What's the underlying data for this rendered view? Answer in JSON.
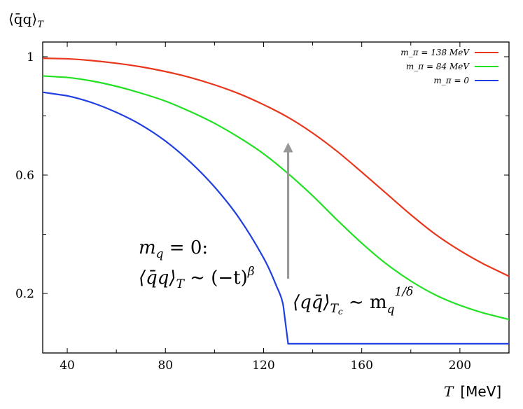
{
  "chart_data": {
    "type": "line",
    "ylabel": "⟨q̄q⟩",
    "ylabel_sub": "T",
    "xlabel": "T",
    "xlabel_unit": "[MeV]",
    "xlim": [
      30,
      220
    ],
    "ylim": [
      0,
      1.06
    ],
    "xticks": [
      40,
      80,
      120,
      160,
      200
    ],
    "yticks": [
      1,
      0.6,
      0.2
    ],
    "ytick_labels": [
      "1",
      "0.6",
      "0.2"
    ],
    "grid": false,
    "legend_position": "top-right",
    "series": [
      {
        "name": "m_π = 138 MeV",
        "color": "#e8371c",
        "x": [
          30,
          40,
          50,
          60,
          70,
          80,
          90,
          100,
          110,
          120,
          130,
          140,
          150,
          160,
          170,
          180,
          190,
          200,
          210,
          220
        ],
        "y": [
          0.995,
          0.993,
          0.987,
          0.978,
          0.966,
          0.95,
          0.93,
          0.905,
          0.875,
          0.838,
          0.795,
          0.742,
          0.68,
          0.61,
          0.538,
          0.466,
          0.4,
          0.345,
          0.298,
          0.258
        ]
      },
      {
        "name": "m_π = 84 MeV",
        "color": "#22e022",
        "x": [
          30,
          40,
          50,
          60,
          70,
          80,
          90,
          100,
          110,
          120,
          130,
          140,
          150,
          160,
          170,
          180,
          190,
          200,
          210,
          220
        ],
        "y": [
          0.935,
          0.93,
          0.918,
          0.9,
          0.877,
          0.85,
          0.815,
          0.775,
          0.727,
          0.672,
          0.605,
          0.53,
          0.448,
          0.37,
          0.3,
          0.242,
          0.195,
          0.16,
          0.133,
          0.112
        ]
      },
      {
        "name": "m_π = 0",
        "color": "#1f3fe0",
        "x": [
          30,
          40,
          50,
          60,
          70,
          80,
          90,
          100,
          110,
          120,
          125,
          128,
          130,
          130.1,
          150,
          180,
          220
        ],
        "y": [
          0.88,
          0.868,
          0.845,
          0.812,
          0.77,
          0.715,
          0.645,
          0.56,
          0.455,
          0.32,
          0.23,
          0.16,
          0.03,
          0.03,
          0.03,
          0.03,
          0.03
        ]
      }
    ],
    "annotations": {
      "mq_line1": "m",
      "mq_sub": "q",
      "mq_rest": " = 0:",
      "scaling_lhs": "⟨q̄q⟩",
      "scaling_sub": "T",
      "scaling_rhs": " ∼ (−t)",
      "scaling_exp": "β",
      "tc_lhs": "⟨qq̄⟩",
      "tc_sub": "T",
      "tc_subsub": "c",
      "tc_rhs": " ∼ m",
      "tc_m_sub": "q",
      "tc_exp": "1/δ"
    },
    "arrow": {
      "x": 130,
      "y_from": 0.25,
      "y_to": 0.71,
      "color": "#999999"
    }
  }
}
